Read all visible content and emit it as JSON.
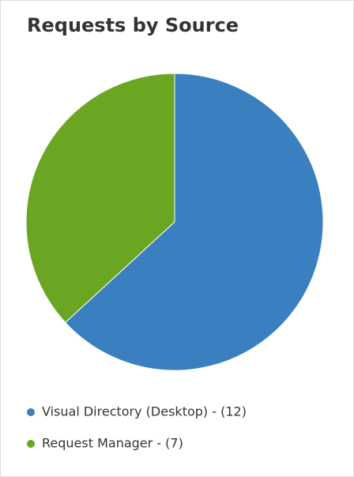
{
  "chart_data": {
    "type": "pie",
    "title": "Requests by Source",
    "categories": [
      "Visual Directory (Desktop) - (12)",
      "Request Manager - (7)"
    ],
    "values": [
      12,
      7
    ],
    "colors": [
      "#3a7fbf",
      "#6aa621"
    ]
  }
}
